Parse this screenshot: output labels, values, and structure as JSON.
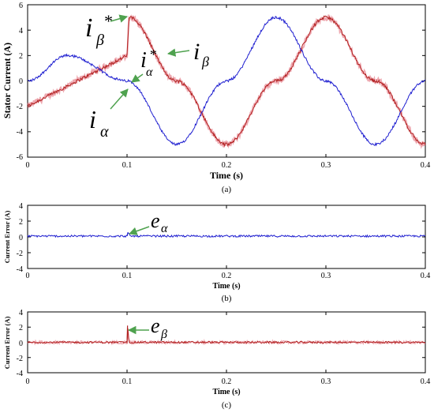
{
  "colors": {
    "alpha": "#1f1fd0",
    "beta": "#b22222",
    "ref": "#e06070",
    "arrow": "#4fa24f"
  },
  "chart_data": [
    {
      "id": "a",
      "type": "line",
      "caption": "(a)",
      "xlabel": "Time (s)",
      "ylabel": "Stator Current (A)",
      "xlim": [
        0,
        0.4
      ],
      "ylim": [
        -6,
        6
      ],
      "xticks": [
        "0",
        "0.1",
        "0.2",
        "0.3",
        "0.4"
      ],
      "yticks": [
        "6",
        "4",
        "2",
        "0",
        "-2",
        "-4",
        "-6"
      ],
      "series": [
        {
          "key": "ia",
          "x": [
            0,
            0.04,
            0.1,
            0.15,
            0.2,
            0.25,
            0.3,
            0.35,
            0.4
          ],
          "y": [
            0,
            2,
            0,
            -5,
            0,
            5,
            0,
            -5,
            0
          ]
        },
        {
          "key": "ib",
          "x": [
            0,
            0.1,
            0.102,
            0.15,
            0.2,
            0.25,
            0.3,
            0.35,
            0.4
          ],
          "y": [
            -2,
            2,
            5,
            0,
            -5,
            0,
            5,
            0,
            -5
          ]
        }
      ],
      "annotations": [
        {
          "base": "i",
          "sub": "β",
          "sup": "*"
        },
        {
          "base": "i",
          "sub": "α",
          "sup": "*"
        },
        {
          "base": "i",
          "sub": "β",
          "sup": ""
        },
        {
          "base": "i",
          "sub": "α",
          "sup": ""
        }
      ]
    },
    {
      "id": "b",
      "type": "line",
      "caption": "(b)",
      "xlabel": "Time (s)",
      "ylabel": "Current Error (A)",
      "xlim": [
        0,
        0.4
      ],
      "ylim": [
        -4,
        4
      ],
      "xticks": [
        "0",
        "0.1",
        "0.2",
        "0.3",
        "0.4"
      ],
      "yticks": [
        "4",
        "2",
        "0",
        "-2",
        "-4"
      ],
      "series": [
        {
          "key": "ea",
          "x": [
            0,
            0.1,
            0.101,
            0.103,
            0.4
          ],
          "y": [
            0.1,
            0.1,
            0.5,
            0.1,
            0.1
          ]
        }
      ],
      "annotations": [
        {
          "base": "e",
          "sub": "α",
          "sup": ""
        }
      ]
    },
    {
      "id": "c",
      "type": "line",
      "caption": "(c)",
      "xlabel": "Time (s)",
      "ylabel": "Current Error (A)",
      "xlim": [
        0,
        0.4
      ],
      "ylim": [
        -4,
        4
      ],
      "xticks": [
        "0",
        "0.1",
        "0.2",
        "0.3",
        "0.4"
      ],
      "yticks": [
        "4",
        "2",
        "0",
        "-2",
        "-4"
      ],
      "series": [
        {
          "key": "eb",
          "x": [
            0,
            0.1,
            0.1005,
            0.102,
            0.4
          ],
          "y": [
            0,
            0,
            2.2,
            0,
            0
          ]
        }
      ],
      "annotations": [
        {
          "base": "e",
          "sub": "β",
          "sup": ""
        }
      ]
    }
  ]
}
